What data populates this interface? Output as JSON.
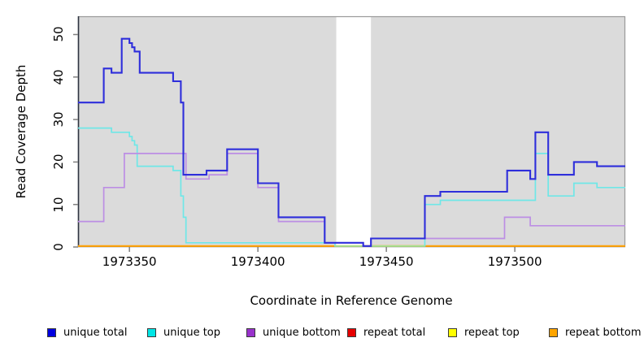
{
  "axes": {
    "xlabel": "Coordinate in Reference Genome",
    "ylabel": "Read Coverage Depth",
    "x_ticks": [
      1973350,
      1973400,
      1973450,
      1973500
    ],
    "y_ticks": [
      0,
      10,
      20,
      30,
      40,
      50
    ]
  },
  "chart_data": {
    "type": "line",
    "step_style": true,
    "title": "",
    "xlabel": "Coordinate in Reference Genome",
    "ylabel": "Read Coverage Depth",
    "x_range": [
      1973330,
      1973543
    ],
    "y_range": [
      0,
      54.3
    ],
    "plot_background": "#DBDBDB",
    "frame_color": "#9A9A9A",
    "axis_line_color": "#2E3440",
    "tick_color": "#808080",
    "masked_region": {
      "x_start": 1973430.5,
      "x_end": 1973444,
      "color": "#FFFFFF"
    },
    "series": [
      {
        "name": "repeat total",
        "color": "#CC0000",
        "line_width": 1.6,
        "steps": [
          [
            1973330,
            0
          ],
          [
            1973543,
            0
          ]
        ]
      },
      {
        "name": "repeat top",
        "color": "#FFFF00",
        "line_width": 1.6,
        "steps": [
          [
            1973330,
            0
          ],
          [
            1973543,
            0
          ]
        ]
      },
      {
        "name": "repeat bottom",
        "color": "#FFA30A",
        "line_width": 2.2,
        "steps": [
          [
            1973330,
            0
          ],
          [
            1973543,
            0
          ]
        ]
      },
      {
        "name": "unique top",
        "color": "#6FE7E7",
        "line_width": 1.7,
        "steps": [
          [
            1973330,
            28
          ],
          [
            1973343,
            27
          ],
          [
            1973350,
            26
          ],
          [
            1973351,
            25
          ],
          [
            1973352,
            24
          ],
          [
            1973353,
            19
          ],
          [
            1973367,
            18
          ],
          [
            1973370,
            12
          ],
          [
            1973371,
            7
          ],
          [
            1973372,
            1
          ],
          [
            1973430,
            0
          ],
          [
            1973465,
            10
          ],
          [
            1973471,
            11
          ],
          [
            1973508,
            22
          ],
          [
            1973513,
            12
          ],
          [
            1973523,
            15
          ],
          [
            1973532,
            14
          ],
          [
            1973543,
            14
          ]
        ]
      },
      {
        "name": "baseline segment",
        "color": "#9CE69C",
        "line_width": 1.7,
        "in_legend": false,
        "steps": [
          [
            1973430,
            0
          ],
          [
            1973465,
            0
          ]
        ]
      },
      {
        "name": "unique bottom",
        "color": "#BC8EE4",
        "line_width": 1.7,
        "steps": [
          [
            1973330,
            6
          ],
          [
            1973340,
            14
          ],
          [
            1973348,
            22
          ],
          [
            1973372,
            16
          ],
          [
            1973381,
            17
          ],
          [
            1973388,
            22
          ],
          [
            1973400,
            14
          ],
          [
            1973408,
            6
          ],
          [
            1973426,
            1
          ],
          [
            1973441,
            0
          ],
          [
            1973444,
            2
          ],
          [
            1973496,
            7
          ],
          [
            1973506,
            5
          ],
          [
            1973543,
            5
          ]
        ]
      },
      {
        "name": "unique total",
        "color": "#2E2EDB",
        "line_width": 2.1,
        "steps": [
          [
            1973330,
            34
          ],
          [
            1973340,
            42
          ],
          [
            1973343,
            41
          ],
          [
            1973347,
            49
          ],
          [
            1973350,
            48
          ],
          [
            1973351,
            47
          ],
          [
            1973352,
            46
          ],
          [
            1973354,
            41
          ],
          [
            1973367,
            39
          ],
          [
            1973370,
            34
          ],
          [
            1973371,
            17
          ],
          [
            1973380,
            18
          ],
          [
            1973388,
            23
          ],
          [
            1973400,
            15
          ],
          [
            1973408,
            7
          ],
          [
            1973426,
            1
          ],
          [
            1973441,
            0
          ],
          [
            1973444,
            2
          ],
          [
            1973465,
            12
          ],
          [
            1973471,
            13
          ],
          [
            1973497,
            18
          ],
          [
            1973506,
            16
          ],
          [
            1973508,
            27
          ],
          [
            1973513,
            17
          ],
          [
            1973523,
            20
          ],
          [
            1973532,
            19
          ],
          [
            1973543,
            19
          ]
        ]
      }
    ],
    "legend": [
      {
        "label": "unique total",
        "color": "#0000E0"
      },
      {
        "label": "unique top",
        "color": "#00E5E5"
      },
      {
        "label": "unique bottom",
        "color": "#9932CC"
      },
      {
        "label": "repeat total",
        "color": "#E60000"
      },
      {
        "label": "repeat top",
        "color": "#FFFF00"
      },
      {
        "label": "repeat bottom",
        "color": "#FFA500"
      }
    ],
    "legend_position": "bottom"
  }
}
